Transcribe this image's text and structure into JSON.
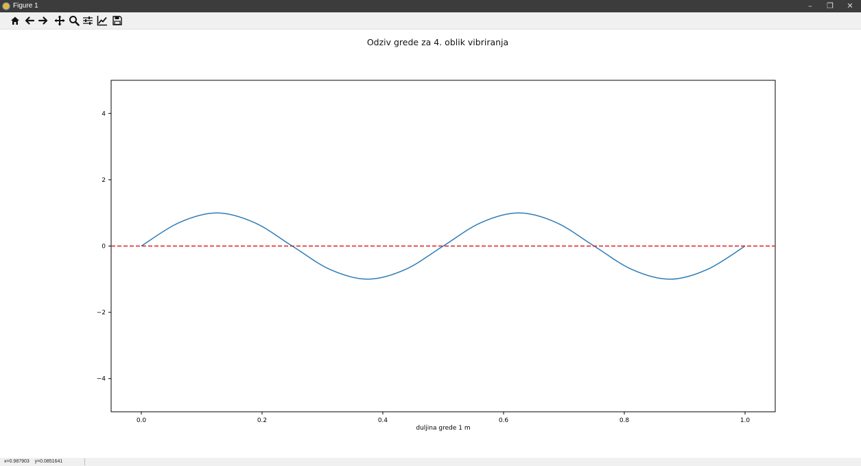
{
  "window": {
    "title": "Figure 1",
    "controls": {
      "minimize": "–",
      "restore": "❐",
      "close": "✕"
    }
  },
  "toolbar": {
    "buttons": [
      "home-icon",
      "back-icon",
      "forward-icon",
      "pan-icon",
      "zoom-icon",
      "configure-subplots-icon",
      "edit-axis-icon",
      "save-icon"
    ]
  },
  "status": {
    "coords": "x=0.987903    y=0.0851641"
  },
  "colors": {
    "line": "#2c7bb6",
    "reference_line": "#e31a1c",
    "titlebar": "#3c3c3c"
  },
  "chart_data": {
    "type": "line",
    "title": "Odziv grede za 4. oblik vibriranja",
    "xlabel": "duljina grede 1 m",
    "ylabel": "",
    "xlim": [
      -0.05,
      1.05
    ],
    "ylim": [
      -5,
      5
    ],
    "x_ticks": [
      "0.0",
      "0.2",
      "0.4",
      "0.6",
      "0.8",
      "1.0"
    ],
    "y_ticks": [
      "−4",
      "−2",
      "0",
      "2",
      "4"
    ],
    "grid": false,
    "series": [
      {
        "style": "solid",
        "color": "#2c7bb6",
        "x": [
          0.0,
          0.0625,
          0.125,
          0.1875,
          0.25,
          0.3125,
          0.375,
          0.4375,
          0.5,
          0.5625,
          0.625,
          0.6875,
          0.75,
          0.8125,
          0.875,
          0.9375,
          1.0
        ],
        "y": [
          0.0,
          0.707,
          1.0,
          0.707,
          0.0,
          -0.707,
          -1.0,
          -0.707,
          0.0,
          0.707,
          1.0,
          0.707,
          0.0,
          -0.707,
          -1.0,
          -0.707,
          0.0
        ]
      },
      {
        "style": "dashed",
        "color": "#e31a1c",
        "x": [
          -0.05,
          1.05
        ],
        "y": [
          0,
          0
        ]
      }
    ]
  }
}
